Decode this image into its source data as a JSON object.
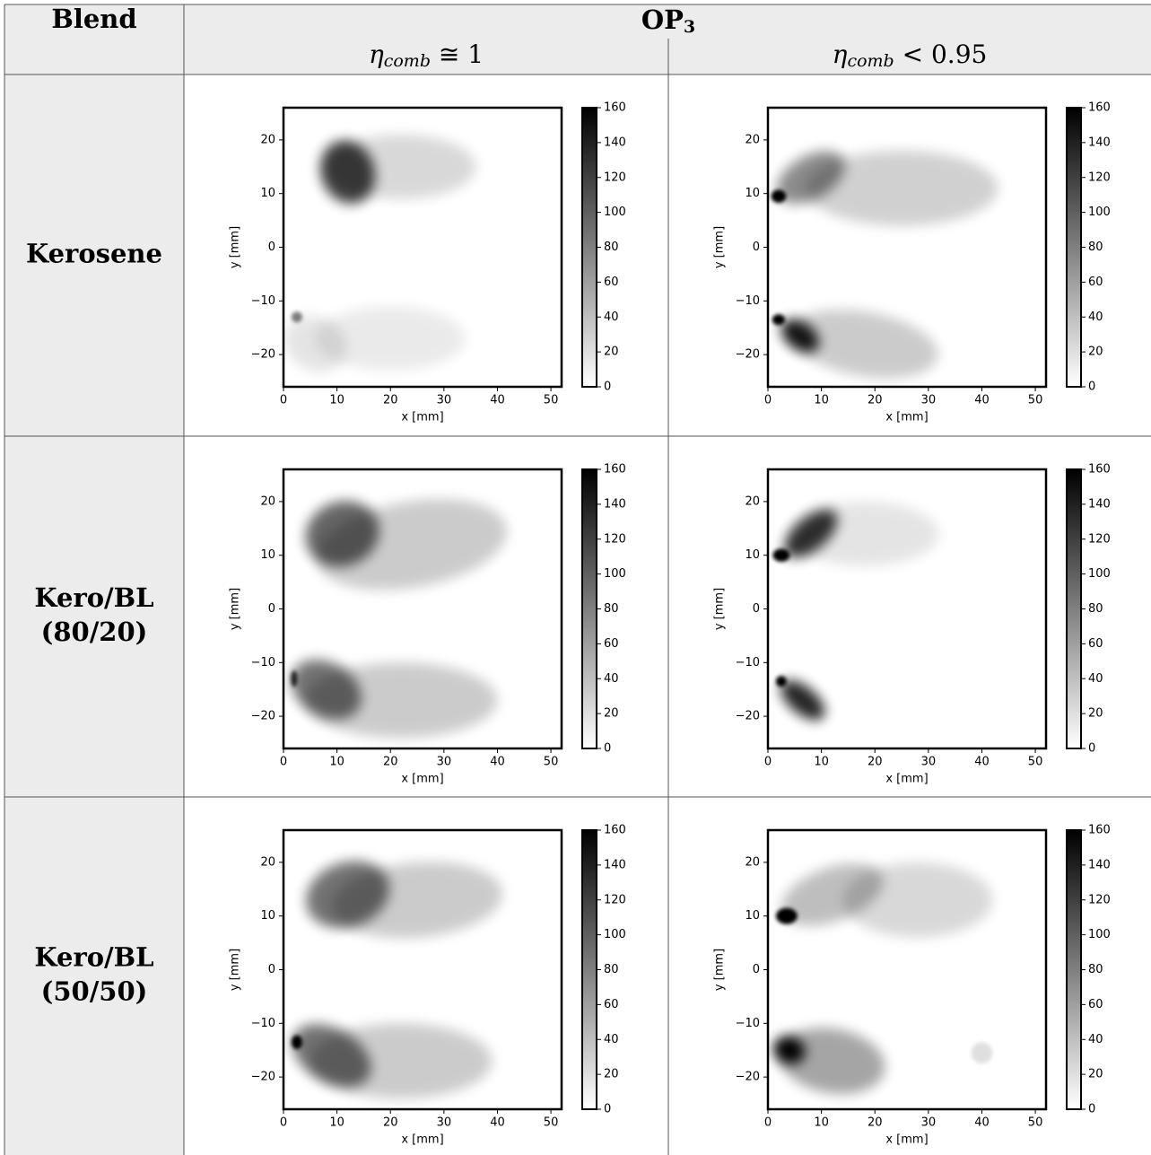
{
  "table": {
    "header": {
      "blend": "Blend",
      "group": {
        "text": "OP",
        "subscript": "3"
      },
      "columns": [
        {
          "symbol": "η",
          "subscript": "comb",
          "relation": " ≅ 1"
        },
        {
          "symbol": "η",
          "subscript": "comb",
          "relation": " < 0.95"
        }
      ]
    },
    "rows": [
      {
        "label": [
          "Kerosene"
        ]
      },
      {
        "label": [
          "Kero/BL",
          "(80/20)"
        ]
      },
      {
        "label": [
          "Kero/BL",
          "(50/50)"
        ]
      }
    ],
    "plot": {
      "xlabel": "x [mm]",
      "ylabel": "y [mm]",
      "xlim": [
        0,
        52
      ],
      "ylim": [
        -26,
        26
      ],
      "xticks": [
        0,
        10,
        20,
        30,
        40,
        50
      ],
      "yticks": [
        {
          "value": -20,
          "label": "−20"
        },
        {
          "value": -10,
          "label": "−10"
        },
        0,
        10,
        20
      ],
      "clim": [
        0,
        160
      ],
      "cticks": [
        0,
        20,
        40,
        60,
        80,
        100,
        120,
        140,
        160
      ]
    }
  }
}
